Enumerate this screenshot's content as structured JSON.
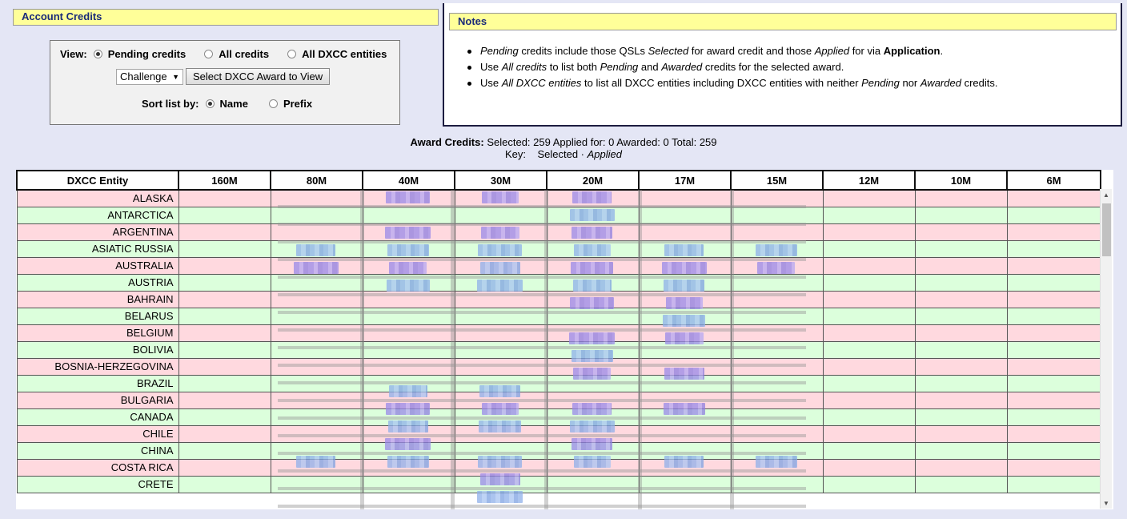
{
  "account": {
    "title": "Account Credits"
  },
  "view": {
    "label": "View:",
    "options": [
      "Pending credits",
      "All credits",
      "All DXCC entities"
    ],
    "award_select": "Challenge",
    "select_button": "Select DXCC Award to View",
    "sort_label": "Sort list by:",
    "sort_options": [
      "Name",
      "Prefix"
    ]
  },
  "notes": {
    "title": "Notes",
    "items": [
      {
        "pre": "",
        "em1": "Pending",
        "mid1": " credits include those QSLs ",
        "em2": "Selected",
        "mid2": " for award credit and those ",
        "em3": "Applied",
        "mid3": " for via ",
        "b": "Application",
        "post": "."
      },
      {
        "pre": "Use ",
        "em1": "All credits",
        "mid1": " to list both ",
        "em2": "Pending",
        "mid2": " and ",
        "em3": "Awarded",
        "mid3": " credits for the selected award.",
        "b": "",
        "post": ""
      },
      {
        "pre": "Use ",
        "em1": "All DXCC entities",
        "mid1": " to list all DXCC entities including DXCC entities with neither ",
        "em2": "Pending",
        "mid2": " nor ",
        "em3": "Awarded",
        "mid3": " credits.",
        "b": "",
        "post": ""
      }
    ]
  },
  "summary": {
    "label": "Award Credits:",
    "text": "Selected: 259 Applied for: 0 Awarded: 0 Total: 259",
    "key_label": "Key:",
    "key_selected": "Selected",
    "key_sep": "·",
    "key_applied": "Applied"
  },
  "table": {
    "headers": [
      "DXCC Entity",
      "160M",
      "80M",
      "40M",
      "30M",
      "20M",
      "17M",
      "15M",
      "12M",
      "10M",
      "6M"
    ],
    "rows": [
      "ALASKA",
      "ANTARCTICA",
      "ARGENTINA",
      "ASIATIC RUSSIA",
      "AUSTRALIA",
      "AUSTRIA",
      "BAHRAIN",
      "BELARUS",
      "BELGIUM",
      "BOLIVIA",
      "BOSNIA-HERZEGOVINA",
      "BRAZIL",
      "BULGARIA",
      "CANADA",
      "CHILE",
      "CHINA",
      "COSTA RICA",
      "CRETE"
    ]
  },
  "colors": {
    "pink_row": "#ffd9df",
    "green_row": "#dcffdc",
    "title_bg": "#ffff99",
    "title_text": "#1a2a7a"
  }
}
